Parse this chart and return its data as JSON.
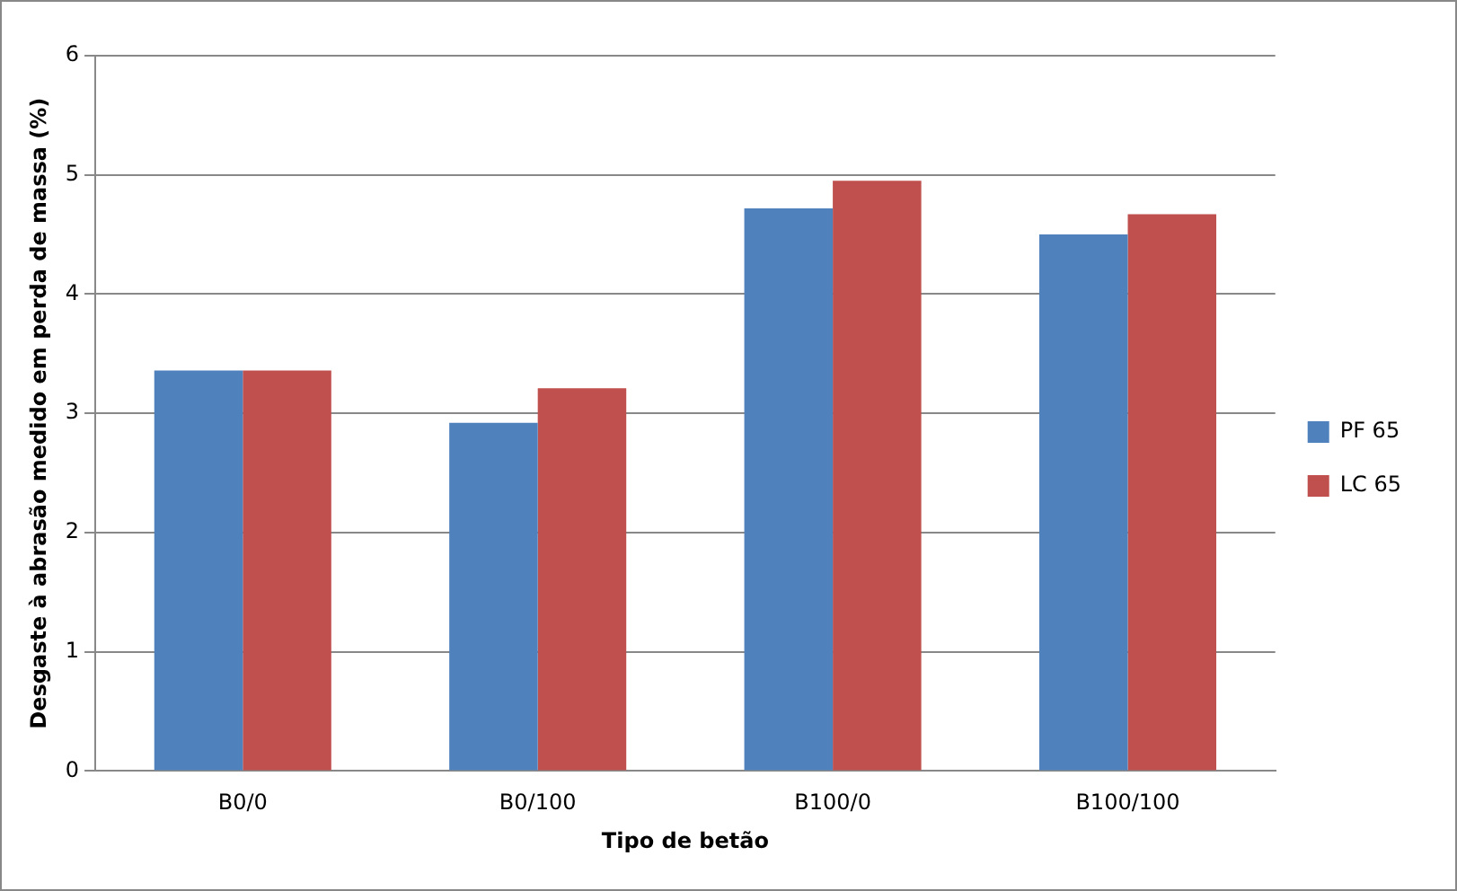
{
  "chart_data": {
    "type": "bar",
    "xlabel": "Tipo de betão",
    "ylabel": "Desgaste à abrasão medido em perda de massa (%)",
    "categories": [
      "B0/0",
      "B0/100",
      "B100/0",
      "B100/100"
    ],
    "series": [
      {
        "name": "PF 65",
        "color": "#4f81bd",
        "values": [
          3.36,
          2.92,
          4.72,
          4.5
        ]
      },
      {
        "name": "LC 65",
        "color": "#c0504d",
        "values": [
          3.36,
          3.21,
          4.95,
          4.67
        ]
      }
    ],
    "ylim": [
      0,
      6
    ],
    "yticks": [
      0,
      1,
      2,
      3,
      4,
      5,
      6
    ],
    "grid": "y",
    "legend": "right"
  }
}
